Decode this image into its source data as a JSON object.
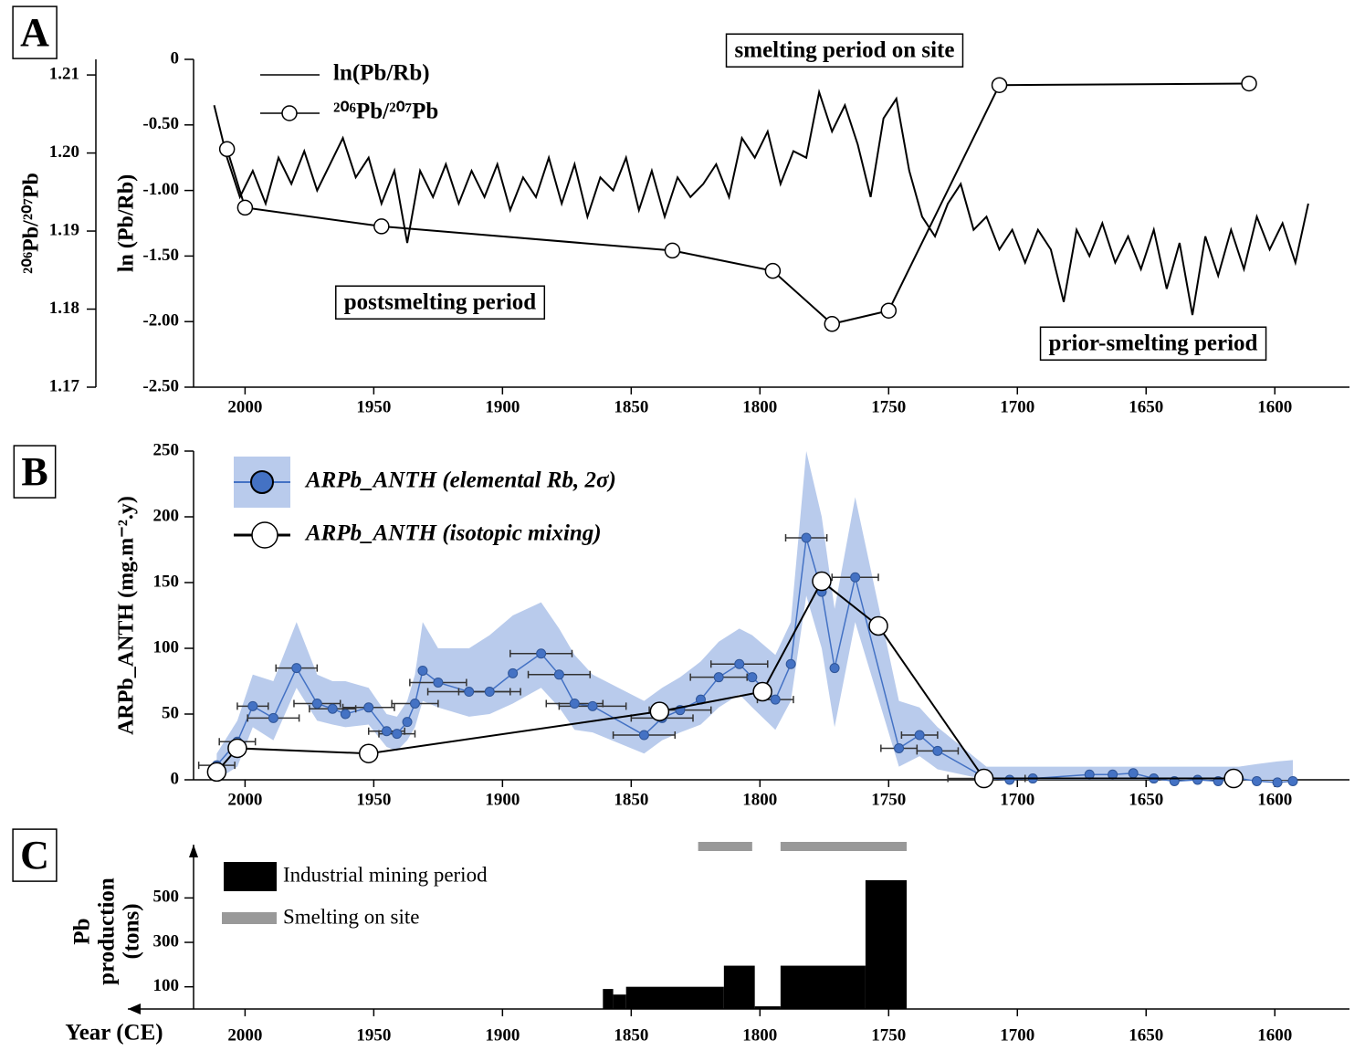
{
  "chart_data": [
    {
      "type": "line",
      "panel": "A",
      "xlim": [
        2020,
        1571
      ],
      "xticks": [
        2000,
        1950,
        1900,
        1850,
        1800,
        1750,
        1700,
        1650,
        1600
      ],
      "ylim": [
        -2.5,
        0
      ],
      "yticks": [
        0,
        {
          "value": -0.5,
          "label": "-0.50"
        },
        {
          "value": -1,
          "label": "-1.00"
        },
        {
          "value": -1.5,
          "label": "-1.50"
        },
        {
          "value": -2,
          "label": "-2.00"
        },
        {
          "value": -2.5,
          "label": "-2.50"
        }
      ],
      "ylabel": "ln (Pb/Rb)",
      "y2lim": [
        1.17,
        1.212
      ],
      "y2ticks": [
        1.17,
        1.18,
        1.19,
        {
          "value": 1.2,
          "label": "1.20"
        },
        1.21
      ],
      "y2label": "²⁰⁶Pb/²⁰⁷Pb",
      "annotations": [
        "smelting period on site",
        "postsmelting period",
        "prior-smelting period"
      ],
      "series": [
        {
          "name": "ln(Pb/Rb)",
          "color": "#000000",
          "x": [
            2012,
            2007,
            2002,
            1997,
            1992,
            1987,
            1982,
            1977,
            1972,
            1967,
            1962,
            1957,
            1952,
            1947,
            1942,
            1937,
            1932,
            1927,
            1922,
            1917,
            1912,
            1907,
            1902,
            1897,
            1892,
            1887,
            1882,
            1877,
            1872,
            1867,
            1862,
            1857,
            1852,
            1847,
            1842,
            1837,
            1832,
            1827,
            1822,
            1817,
            1812,
            1807,
            1802,
            1797,
            1792,
            1787,
            1782,
            1777,
            1772,
            1767,
            1762,
            1757,
            1752,
            1747,
            1742,
            1737,
            1732,
            1727,
            1722,
            1717,
            1712,
            1707,
            1702,
            1697,
            1692,
            1687,
            1682,
            1677,
            1672,
            1667,
            1662,
            1657,
            1652,
            1647,
            1642,
            1637,
            1632,
            1627,
            1622,
            1617,
            1612,
            1607,
            1602,
            1597,
            1592,
            1587
          ],
          "values": [
            -0.35,
            -0.75,
            -1.05,
            -0.85,
            -1.1,
            -0.75,
            -0.95,
            -0.7,
            -1.0,
            -0.8,
            -0.6,
            -0.9,
            -0.75,
            -1.1,
            -0.85,
            -1.4,
            -0.85,
            -1.05,
            -0.8,
            -1.1,
            -0.85,
            -1.05,
            -0.8,
            -1.15,
            -0.9,
            -1.05,
            -0.75,
            -1.1,
            -0.8,
            -1.2,
            -0.9,
            -1.0,
            -0.75,
            -1.15,
            -0.85,
            -1.2,
            -0.9,
            -1.05,
            -0.95,
            -0.8,
            -1.05,
            -0.6,
            -0.75,
            -0.55,
            -0.95,
            -0.7,
            -0.75,
            -0.25,
            -0.55,
            -0.35,
            -0.65,
            -1.05,
            -0.45,
            -0.3,
            -0.85,
            -1.2,
            -1.35,
            -1.1,
            -0.95,
            -1.3,
            -1.2,
            -1.45,
            -1.3,
            -1.55,
            -1.3,
            -1.45,
            -1.85,
            -1.3,
            -1.5,
            -1.25,
            -1.55,
            -1.35,
            -1.6,
            -1.3,
            -1.75,
            -1.4,
            -1.95,
            -1.35,
            -1.65,
            -1.3,
            -1.6,
            -1.2,
            -1.45,
            -1.25,
            -1.55,
            -1.1
          ]
        },
        {
          "name": "²⁰⁶Pb/²⁰⁷Pb",
          "color": "#000000",
          "marker": "circle",
          "axis": "y2",
          "x": [
            2007,
            2000,
            1947,
            1834,
            1795,
            1772,
            1750,
            1707,
            1610
          ],
          "values": [
            1.2005,
            1.193,
            1.1906,
            1.1875,
            1.1849,
            1.1781,
            1.1798,
            1.2087,
            1.2089
          ]
        }
      ]
    },
    {
      "type": "line",
      "panel": "B",
      "xlim": [
        2020,
        1571
      ],
      "xticks": [
        2000,
        1950,
        1900,
        1850,
        1800,
        1750,
        1700,
        1650,
        1600
      ],
      "ylim": [
        0,
        250
      ],
      "yticks": [
        0,
        50,
        100,
        150,
        200,
        250
      ],
      "ylabel": "ARPb_ANTH (mg.m⁻².y)",
      "series": [
        {
          "name": "ARPb_ANTH (elemental Rb, 2σ)",
          "color": "#4472c4",
          "band_color": "#b9cbec",
          "marker": "circle",
          "x": [
            2011,
            2003,
            1997,
            1989,
            1980,
            1972,
            1966,
            1961,
            1952,
            1945,
            1941,
            1937,
            1934,
            1931,
            1925,
            1913,
            1905,
            1896,
            1885,
            1878,
            1872,
            1865,
            1845,
            1838,
            1831,
            1823,
            1816,
            1808,
            1803,
            1794,
            1788,
            1782,
            1776,
            1771,
            1763,
            1746,
            1738,
            1731,
            1712,
            1703,
            1694,
            1672,
            1663,
            1655,
            1647,
            1639,
            1630,
            1622,
            1614,
            1607,
            1599,
            1593
          ],
          "values": [
            11,
            29,
            56,
            47,
            85,
            58,
            54,
            50,
            55,
            37,
            35,
            44,
            58,
            83,
            74,
            67,
            67,
            81,
            96,
            80,
            58,
            56,
            34,
            47,
            53,
            61,
            78,
            88,
            78,
            61,
            88,
            184,
            143,
            85,
            154,
            24,
            34,
            22,
            1,
            0,
            1,
            4,
            4,
            5,
            1,
            -1,
            0,
            -1,
            1,
            -1,
            -2,
            -1
          ],
          "xerr": [
            7,
            7,
            6,
            10,
            8,
            9,
            9,
            null,
            10,
            7,
            7,
            null,
            9,
            null,
            11,
            16,
            12,
            null,
            12,
            12,
            11,
            13,
            12,
            12,
            12,
            null,
            11,
            11,
            null,
            7,
            null,
            8,
            null,
            null,
            9,
            7,
            7,
            8,
            15,
            null,
            null,
            null,
            null,
            null,
            null,
            null,
            null,
            null,
            null,
            null,
            null,
            null
          ],
          "lower": [
            0,
            10,
            40,
            30,
            70,
            45,
            42,
            40,
            42,
            25,
            22,
            30,
            40,
            60,
            55,
            48,
            50,
            58,
            70,
            55,
            38,
            36,
            20,
            30,
            36,
            42,
            55,
            65,
            55,
            38,
            60,
            140,
            100,
            40,
            120,
            10,
            18,
            8,
            0,
            0,
            0,
            0,
            0,
            0,
            0,
            0,
            0,
            0,
            0,
            0,
            0,
            0
          ],
          "upper": [
            20,
            45,
            80,
            75,
            120,
            80,
            75,
            75,
            70,
            50,
            48,
            60,
            80,
            120,
            100,
            100,
            110,
            125,
            135,
            115,
            95,
            80,
            60,
            70,
            78,
            90,
            105,
            115,
            110,
            95,
            120,
            250,
            200,
            130,
            215,
            60,
            55,
            40,
            10,
            10,
            10,
            10,
            10,
            10,
            10,
            10,
            10,
            10,
            10,
            12,
            14,
            15
          ]
        },
        {
          "name": "ARPb_ANTH (isotopic mixing)",
          "color": "#000000",
          "marker": "open-circle",
          "x": [
            2011,
            2003,
            1952,
            1839,
            1799,
            1776,
            1754,
            1713,
            1616
          ],
          "values": [
            6,
            24,
            20,
            52,
            67,
            151,
            117,
            1,
            1
          ]
        }
      ]
    },
    {
      "type": "bar",
      "panel": "C",
      "xlim": [
        2020,
        1571
      ],
      "xticks": [
        2000,
        1950,
        1900,
        1850,
        1800,
        1750,
        1700,
        1650,
        1600
      ],
      "xlabel": "Year (CE)",
      "ylim": [
        0,
        740
      ],
      "yticks": [
        100,
        300,
        500
      ],
      "ylabel": [
        "Pb",
        "production",
        "(tons)"
      ],
      "series": [
        {
          "name": "Industrial mining period",
          "color": "#000000",
          "bins": [
            1861,
            1857,
            1852,
            1814,
            1802,
            1792,
            1759,
            1743
          ],
          "values": [
            90,
            65,
            100,
            195,
            12,
            195,
            580
          ]
        },
        {
          "name": "Smelting on site",
          "color": "#999999",
          "periods": [
            [
              1824,
              1803
            ],
            [
              1792,
              1743
            ]
          ]
        }
      ]
    }
  ]
}
